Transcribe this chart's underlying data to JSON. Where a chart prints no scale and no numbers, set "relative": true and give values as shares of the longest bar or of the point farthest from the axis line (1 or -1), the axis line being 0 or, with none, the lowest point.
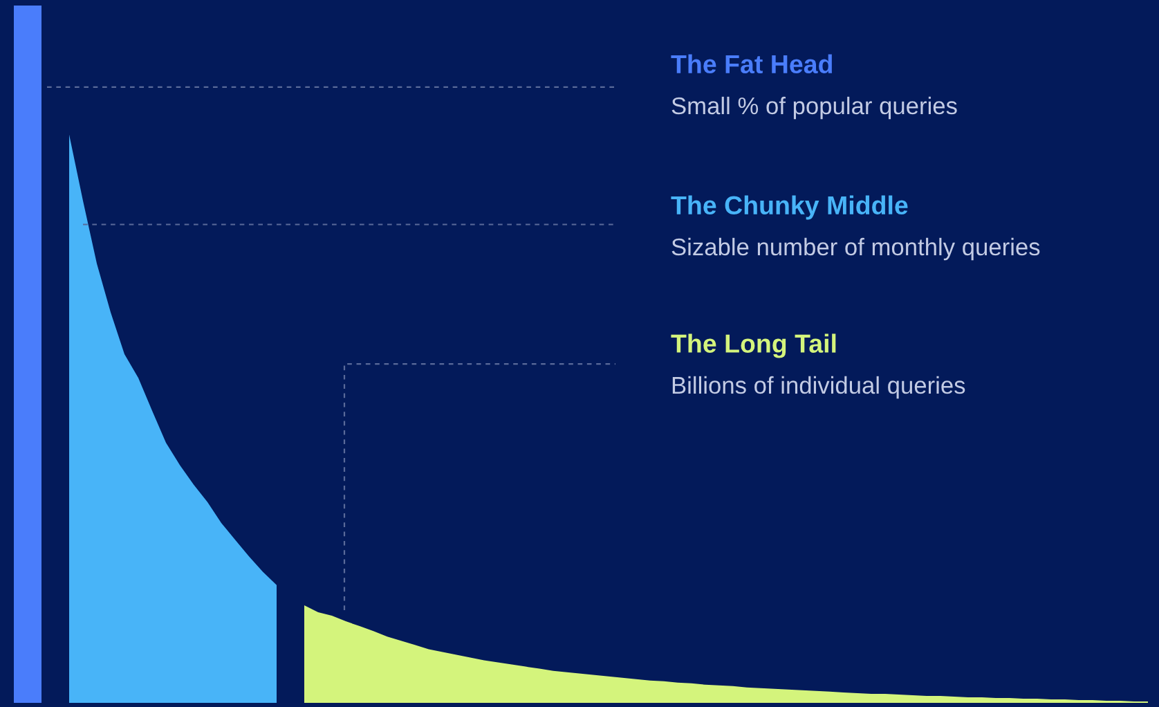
{
  "chart_data": {
    "type": "area",
    "relative": true,
    "categories": [
      null,
      null,
      null,
      null,
      null,
      null,
      null,
      null,
      null,
      null,
      null,
      null,
      null,
      null,
      null,
      null,
      null,
      null,
      null,
      null,
      null,
      null,
      null,
      null,
      null,
      null,
      null,
      null,
      null,
      null,
      null,
      null,
      null,
      null,
      null,
      null,
      null,
      null,
      null,
      null,
      null,
      null,
      null,
      null,
      null,
      null,
      null,
      null,
      null,
      null,
      null,
      null,
      null,
      null,
      null,
      null,
      null,
      null,
      null,
      null,
      null,
      null,
      null,
      null,
      null,
      null,
      null,
      null,
      null,
      null,
      null,
      null,
      null,
      null,
      null,
      null,
      null,
      null,
      null,
      null,
      null,
      null,
      null
    ],
    "series": [
      {
        "name": "The Fat Head",
        "color": "#4a7dfb",
        "values": [
          1,
          1,
          1,
          null,
          null,
          null,
          null,
          null,
          null,
          null,
          null,
          null,
          null,
          null,
          null,
          null,
          null,
          null,
          null,
          null,
          null,
          null,
          null,
          null,
          null,
          null,
          null,
          null,
          null,
          null,
          null,
          null,
          null,
          null,
          null,
          null,
          null,
          null,
          null,
          null,
          null,
          null,
          null,
          null,
          null,
          null,
          null,
          null,
          null,
          null,
          null,
          null,
          null,
          null,
          null,
          null,
          null,
          null,
          null,
          null,
          null,
          null,
          null,
          null,
          null,
          null,
          null,
          null,
          null,
          null,
          null,
          null,
          null,
          null,
          null,
          null,
          null,
          null,
          null,
          null,
          null,
          null,
          null
        ]
      },
      {
        "name": "The Chunky Middle",
        "color": "#48b4f8",
        "values": [
          null,
          null,
          null,
          null,
          0.815,
          0.72,
          0.63,
          0.56,
          0.5,
          0.466,
          0.419,
          0.373,
          0.341,
          0.313,
          0.288,
          0.258,
          0.234,
          0.21,
          0.188,
          0.169,
          null,
          null,
          null,
          null,
          null,
          null,
          null,
          null,
          null,
          null,
          null,
          null,
          null,
          null,
          null,
          null,
          null,
          null,
          null,
          null,
          null,
          null,
          null,
          null,
          null,
          null,
          null,
          null,
          null,
          null,
          null,
          null,
          null,
          null,
          null,
          null,
          null,
          null,
          null,
          null,
          null,
          null,
          null,
          null,
          null,
          null,
          null,
          null,
          null,
          null,
          null,
          null,
          null,
          null,
          null,
          null,
          null,
          null,
          null,
          null,
          null,
          null,
          null
        ]
      },
      {
        "name": "The Long Tail",
        "color": "#d4f47c",
        "values": [
          null,
          null,
          null,
          null,
          null,
          null,
          null,
          null,
          null,
          null,
          null,
          null,
          null,
          null,
          null,
          null,
          null,
          null,
          null,
          null,
          null,
          0.14,
          0.13,
          0.125,
          0.117,
          0.11,
          0.103,
          0.095,
          0.089,
          0.083,
          0.077,
          0.073,
          0.069,
          0.065,
          0.061,
          0.058,
          0.055,
          0.052,
          0.049,
          0.046,
          0.044,
          0.042,
          0.04,
          0.038,
          0.036,
          0.034,
          0.032,
          0.031,
          0.029,
          0.028,
          0.026,
          0.025,
          0.024,
          0.022,
          0.021,
          0.02,
          0.019,
          0.018,
          0.017,
          0.016,
          0.015,
          0.014,
          0.013,
          0.013,
          0.012,
          0.011,
          0.01,
          0.01,
          0.009,
          0.008,
          0.008,
          0.007,
          0.007,
          0.006,
          0.006,
          0.005,
          0.005,
          0.004,
          0.004,
          0.003,
          0.003,
          0.002,
          0.002
        ]
      }
    ],
    "ref_lines": [
      {
        "axis": "y",
        "value": 0.883,
        "color": "#5a6a99",
        "line_style": "dashed"
      },
      {
        "axis": "y",
        "value": 0.686,
        "color": "#5a6a99",
        "line_style": "dashed"
      },
      {
        "axis": "y",
        "value": 0.486,
        "color": "#5a6a99",
        "line_style": "dashed"
      }
    ],
    "annotations": [
      "Small % of popular queries",
      "Sizable number of monthly queries",
      "Billions of individual queries"
    ]
  }
}
